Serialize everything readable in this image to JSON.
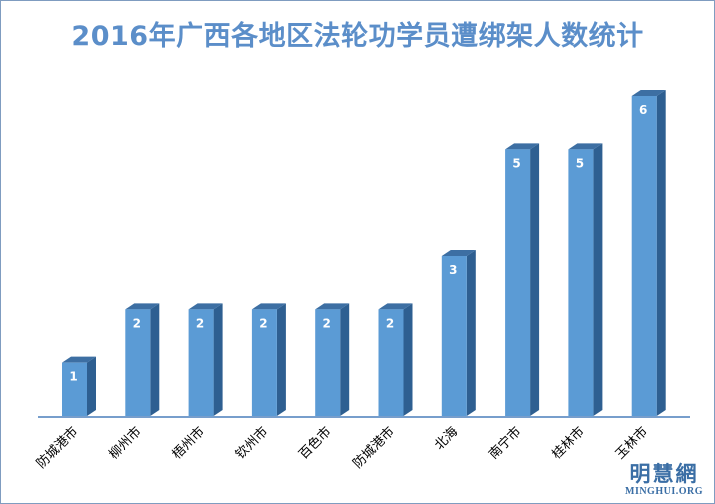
{
  "chart_data": {
    "type": "bar",
    "title": "2016年广西各地区法轮功学员遭绑架人数统计",
    "categories": [
      "防城港市",
      "柳州市",
      "梧州市",
      "钦州市",
      "百色市",
      "防城港市",
      "北海",
      "南宁市",
      "桂林市",
      "玉林市"
    ],
    "values": [
      1,
      2,
      2,
      2,
      2,
      2,
      3,
      5,
      5,
      6
    ],
    "ylim": [
      0,
      6
    ],
    "grid": false,
    "legend": "none",
    "bar_color": "#5b9bd5",
    "bar_side_color": "#2e5f91",
    "bar_top_color": "#3d6fa3",
    "axis_color": "#4a7ebb"
  },
  "watermark": {
    "cn": "明慧網",
    "en": "MINGHUI.ORG"
  }
}
